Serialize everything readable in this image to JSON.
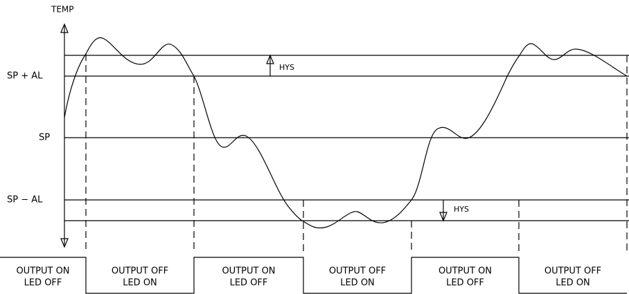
{
  "axis_label": "TEMP",
  "levels": [
    "SP + AL",
    "SP",
    "SP − AL"
  ],
  "hysteresis": [
    "HYS",
    "HYS"
  ],
  "states": [
    {
      "output": "OUTPUT ON",
      "led": "LED OFF"
    },
    {
      "output": "OUTPUT OFF",
      "led": "LED ON"
    },
    {
      "output": "OUTPUT ON",
      "led": "LED OFF"
    },
    {
      "output": "OUTPUT OFF",
      "led": "LED ON"
    },
    {
      "output": "OUTPUT ON",
      "led": "LED OFF"
    },
    {
      "output": "OUTPUT OFF",
      "led": "LED ON"
    }
  ]
}
